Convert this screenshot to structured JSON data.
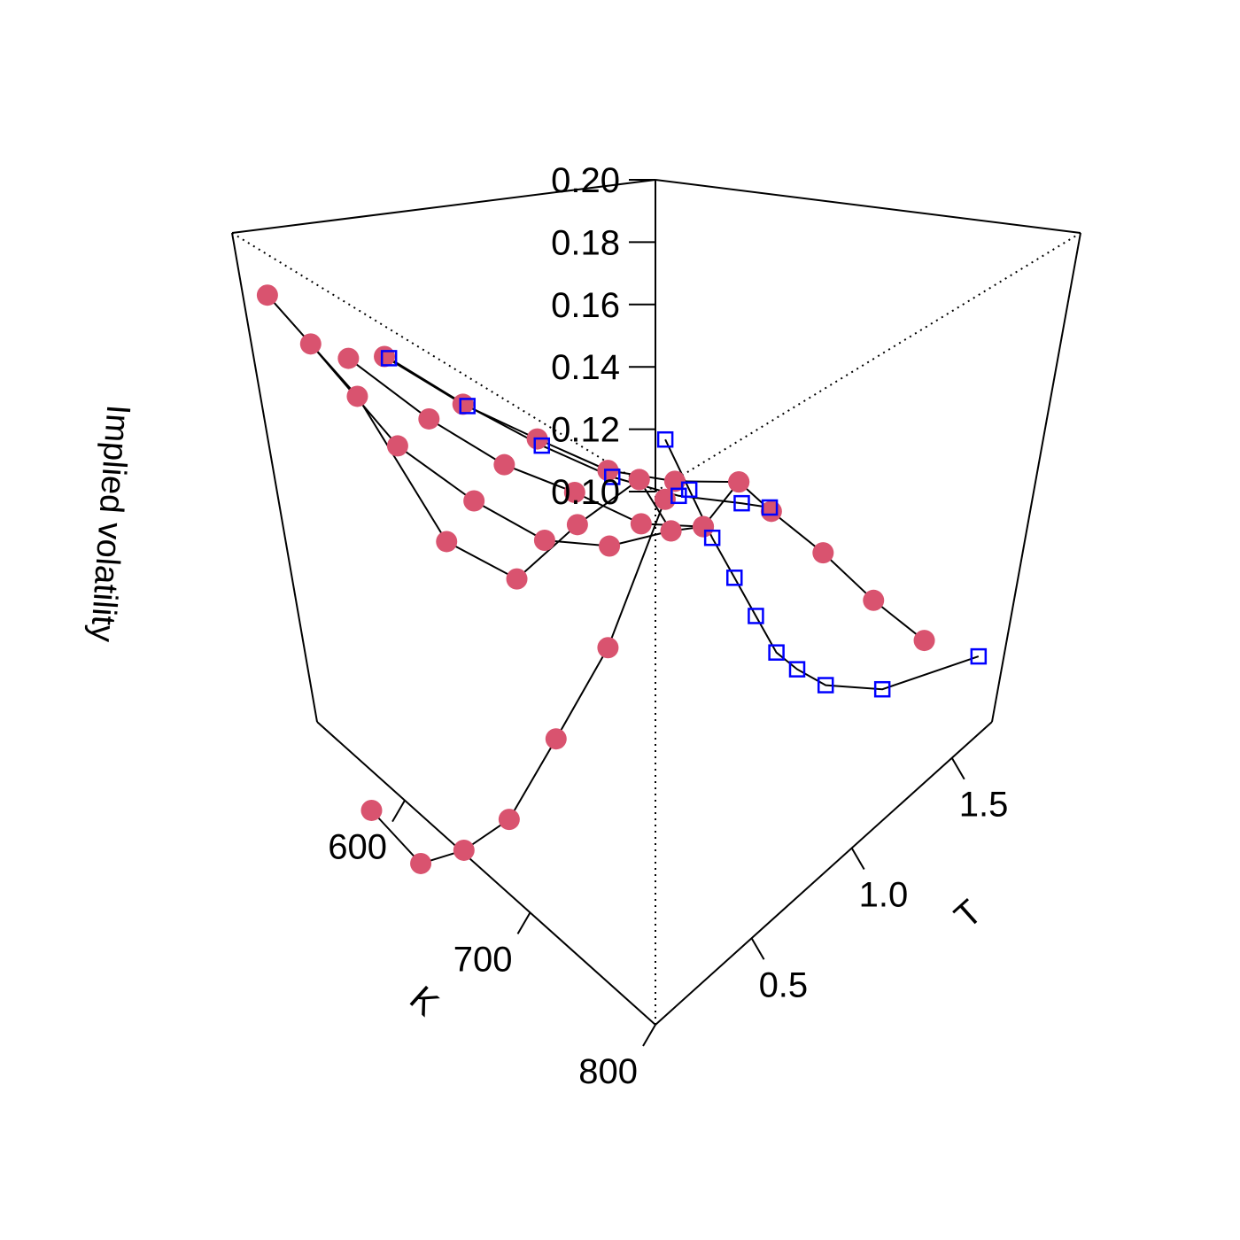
{
  "chart_data": {
    "type": "scatter",
    "projection": "3d-perspective",
    "xlabel": "K",
    "ylabel": "T",
    "zlabel": "Implied volatility",
    "xlim": [
      530,
      800
    ],
    "ylim": [
      0.02,
      1.7
    ],
    "zlim": [
      0.1,
      0.2
    ],
    "x_ticks": [
      {
        "value": 600,
        "label": "600"
      },
      {
        "value": 700,
        "label": "700"
      },
      {
        "value": 800,
        "label": "800"
      }
    ],
    "y_ticks": [
      {
        "value": 0.5,
        "label": "0.5"
      },
      {
        "value": 1.0,
        "label": "1.0"
      },
      {
        "value": 1.5,
        "label": "1.5"
      }
    ],
    "z_ticks": [
      {
        "value": 0.1,
        "label": "0.10"
      },
      {
        "value": 0.12,
        "label": "0.12"
      },
      {
        "value": 0.14,
        "label": "0.14"
      },
      {
        "value": 0.16,
        "label": "0.16"
      },
      {
        "value": 0.18,
        "label": "0.18"
      },
      {
        "value": 0.2,
        "label": "0.20"
      }
    ],
    "grid": false,
    "box": true,
    "legend": "none",
    "series": [
      {
        "marker": "filled-circle",
        "color": "#D9536F",
        "curves": [
          [
            [
              540,
              0.06,
              0.188
            ],
            [
              540,
              0.36,
              0.163
            ],
            [
              540,
              0.66,
              0.124
            ],
            [
              540,
              0.96,
              0.106
            ],
            [
              540,
              1.26,
              0.11
            ],
            [
              540,
              1.56,
              0.112
            ]
          ],
          [
            [
              565,
              0.06,
              0.181
            ],
            [
              565,
              0.36,
              0.156
            ],
            [
              565,
              0.66,
              0.138
            ],
            [
              565,
              0.96,
              0.121
            ],
            [
              565,
              1.26,
              0.11
            ],
            [
              565,
              1.56,
              0.103
            ]
          ],
          [
            [
              590,
              0.06,
              0.181
            ],
            [
              590,
              0.36,
              0.165
            ],
            [
              590,
              0.66,
              0.15
            ],
            [
              590,
              0.96,
              0.137
            ],
            [
              590,
              1.26,
              0.121
            ],
            [
              590,
              1.56,
              0.11
            ]
          ],
          [
            [
              615,
              0.06,
              0.184
            ],
            [
              615,
              0.36,
              0.171
            ],
            [
              615,
              0.66,
              0.159
            ],
            [
              615,
              0.96,
              0.146
            ],
            [
              615,
              1.26,
              0.136
            ],
            [
              615,
              1.56,
              0.127
            ]
          ],
          [
            [
              800,
              0.06,
              0.178
            ],
            [
              760,
              0.06,
              0.151
            ],
            [
              720,
              0.06,
              0.131
            ],
            [
              680,
              0.06,
              0.111
            ],
            [
              640,
              0.06,
              0.098
            ],
            [
              600,
              0.06,
              0.087
            ],
            [
              560,
              0.06,
              0.088
            ]
          ],
          [
            [
              540,
              1.56,
              0.112
            ],
            [
              565,
              1.56,
              0.103
            ],
            [
              590,
              1.56,
              0.11
            ],
            [
              615,
              1.56,
              0.127
            ],
            [
              640,
              1.56,
              0.124
            ],
            [
              680,
              1.56,
              0.121
            ],
            [
              720,
              1.56,
              0.117
            ],
            [
              760,
              1.56,
              0.115
            ]
          ]
        ]
      },
      {
        "marker": "open-square",
        "color": "#0000FF",
        "curves": [
          [
            [
              618,
              0.06,
              0.184
            ],
            [
              618,
              0.36,
              0.171
            ],
            [
              618,
              0.66,
              0.158
            ],
            [
              618,
              0.96,
              0.145
            ],
            [
              618,
              1.26,
              0.133
            ],
            [
              618,
              1.56,
              0.122
            ],
            [
              618,
              1.7,
              0.116
            ]
          ],
          [
            [
              800,
              0.06,
              0.187
            ],
            [
              800,
              0.16,
              0.178
            ],
            [
              800,
              0.26,
              0.169
            ],
            [
              800,
              0.36,
              0.161
            ],
            [
              800,
              0.46,
              0.153
            ],
            [
              800,
              0.56,
              0.145
            ],
            [
              800,
              0.66,
              0.14
            ],
            [
              800,
              0.8,
              0.134
            ],
            [
              800,
              1.08,
              0.126
            ],
            [
              800,
              1.56,
              0.118
            ]
          ]
        ]
      }
    ]
  }
}
